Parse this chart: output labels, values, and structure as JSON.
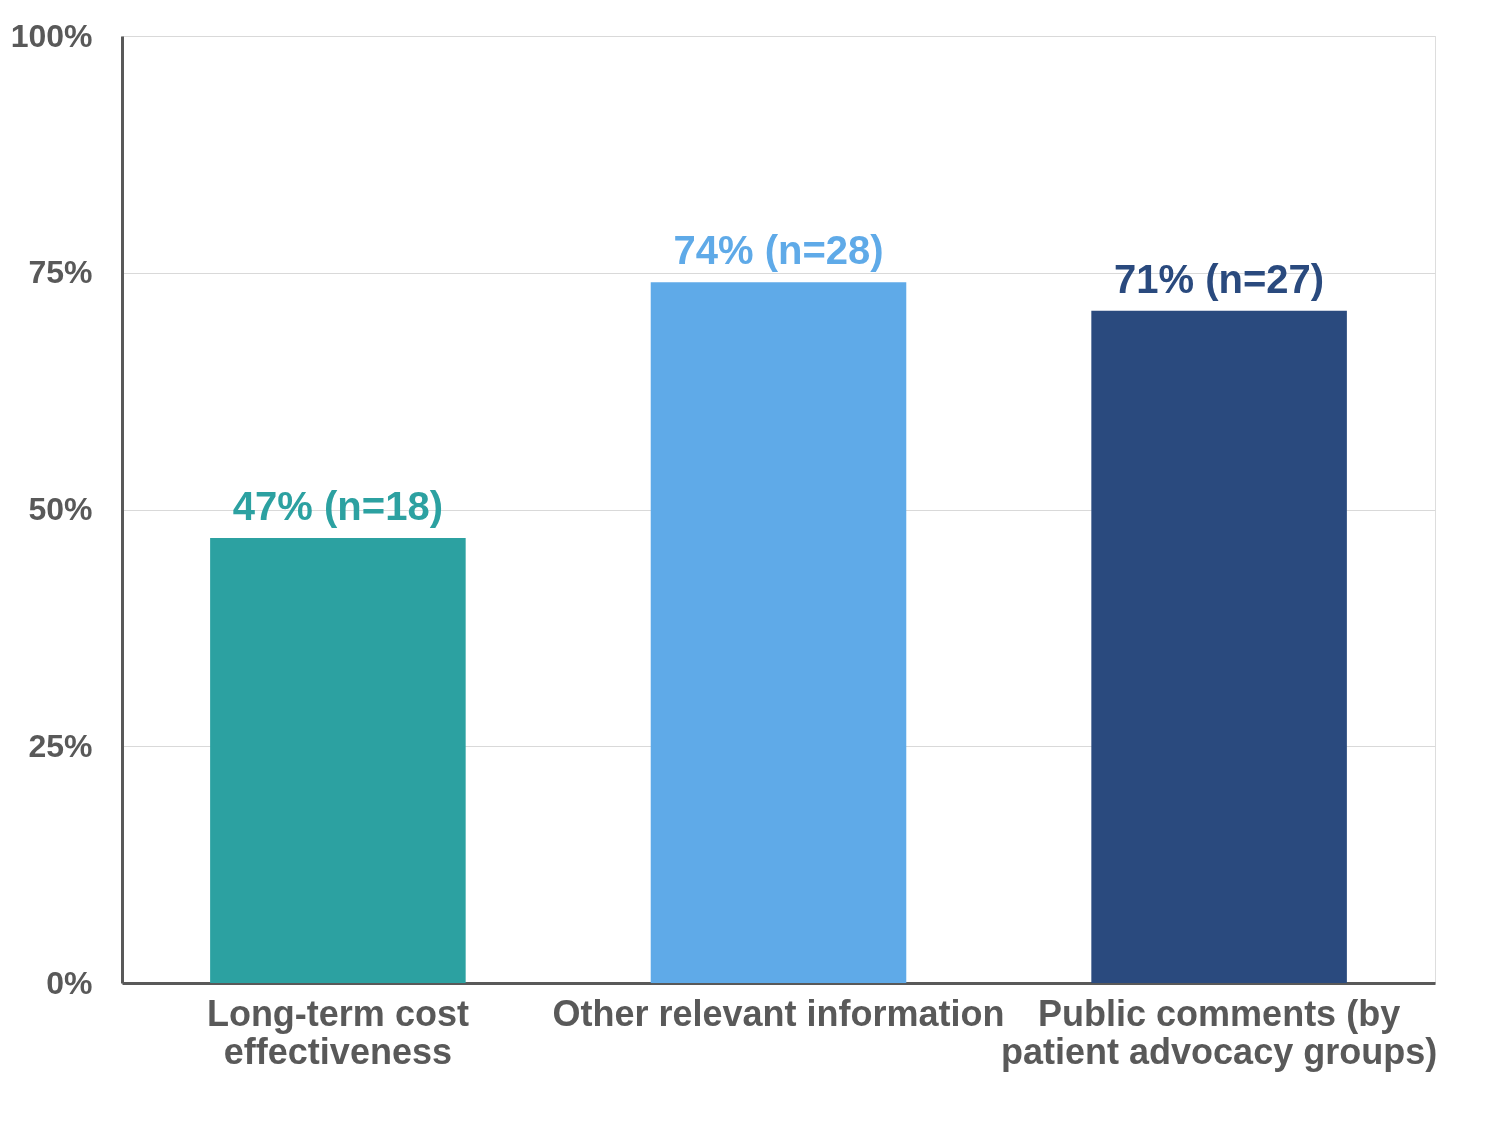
{
  "chart_data": {
    "type": "bar",
    "categories": [
      "Long-term cost effectiveness",
      "Other relevant information",
      "Public comments (by patient advocacy groups)"
    ],
    "values": [
      47,
      74,
      71
    ],
    "colors": [
      "#2ca1a1",
      "#5faae8",
      "#2a4a7e"
    ],
    "value_labels": [
      "47% (n=18)",
      "74% (n=28)",
      "71% (n=27)"
    ],
    "ylim": [
      0,
      100
    ],
    "yticks": [
      {
        "value": 0,
        "label": "0%"
      },
      {
        "value": 25,
        "label": "25%"
      },
      {
        "value": 50,
        "label": "50%"
      },
      {
        "value": 75,
        "label": "75%"
      },
      {
        "value": 100,
        "label": "100%"
      }
    ],
    "grid": "y"
  }
}
